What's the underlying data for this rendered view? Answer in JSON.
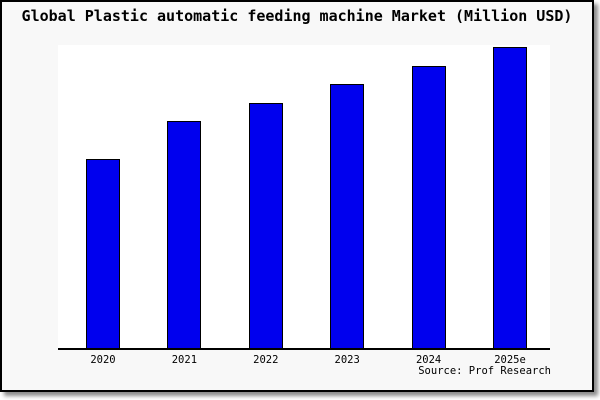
{
  "page": {
    "title": "Global Plastic automatic feeding machine Market (Million USD)",
    "source_credit": "Source: Prof Research"
  },
  "chart_data": {
    "type": "bar",
    "title": "Global Plastic automatic feeding machine Market (Million USD)",
    "categories": [
      "2020",
      "2021",
      "2022",
      "2023",
      "2024",
      "2025e"
    ],
    "values": [
      62.7,
      75.2,
      81.3,
      87.7,
      93.7,
      100
    ],
    "value_note": "no y-axis scale shown in image; values are relative estimates normalized to 2025e = 100",
    "xlabel": "",
    "ylabel": "",
    "ylim": [
      0,
      101.7
    ],
    "grid": false,
    "legend": false,
    "bar_color": "#0000ee",
    "bar_border_color": "#000000",
    "source": "Source: Prof Research"
  },
  "colors": {
    "page_background": "#ffffff",
    "panel_background": "#f8f8f8",
    "plot_background": "#ffffff",
    "frame_border": "#000000",
    "axis": "#000000",
    "text": "#000000",
    "shadow": "#8c8c8c"
  }
}
